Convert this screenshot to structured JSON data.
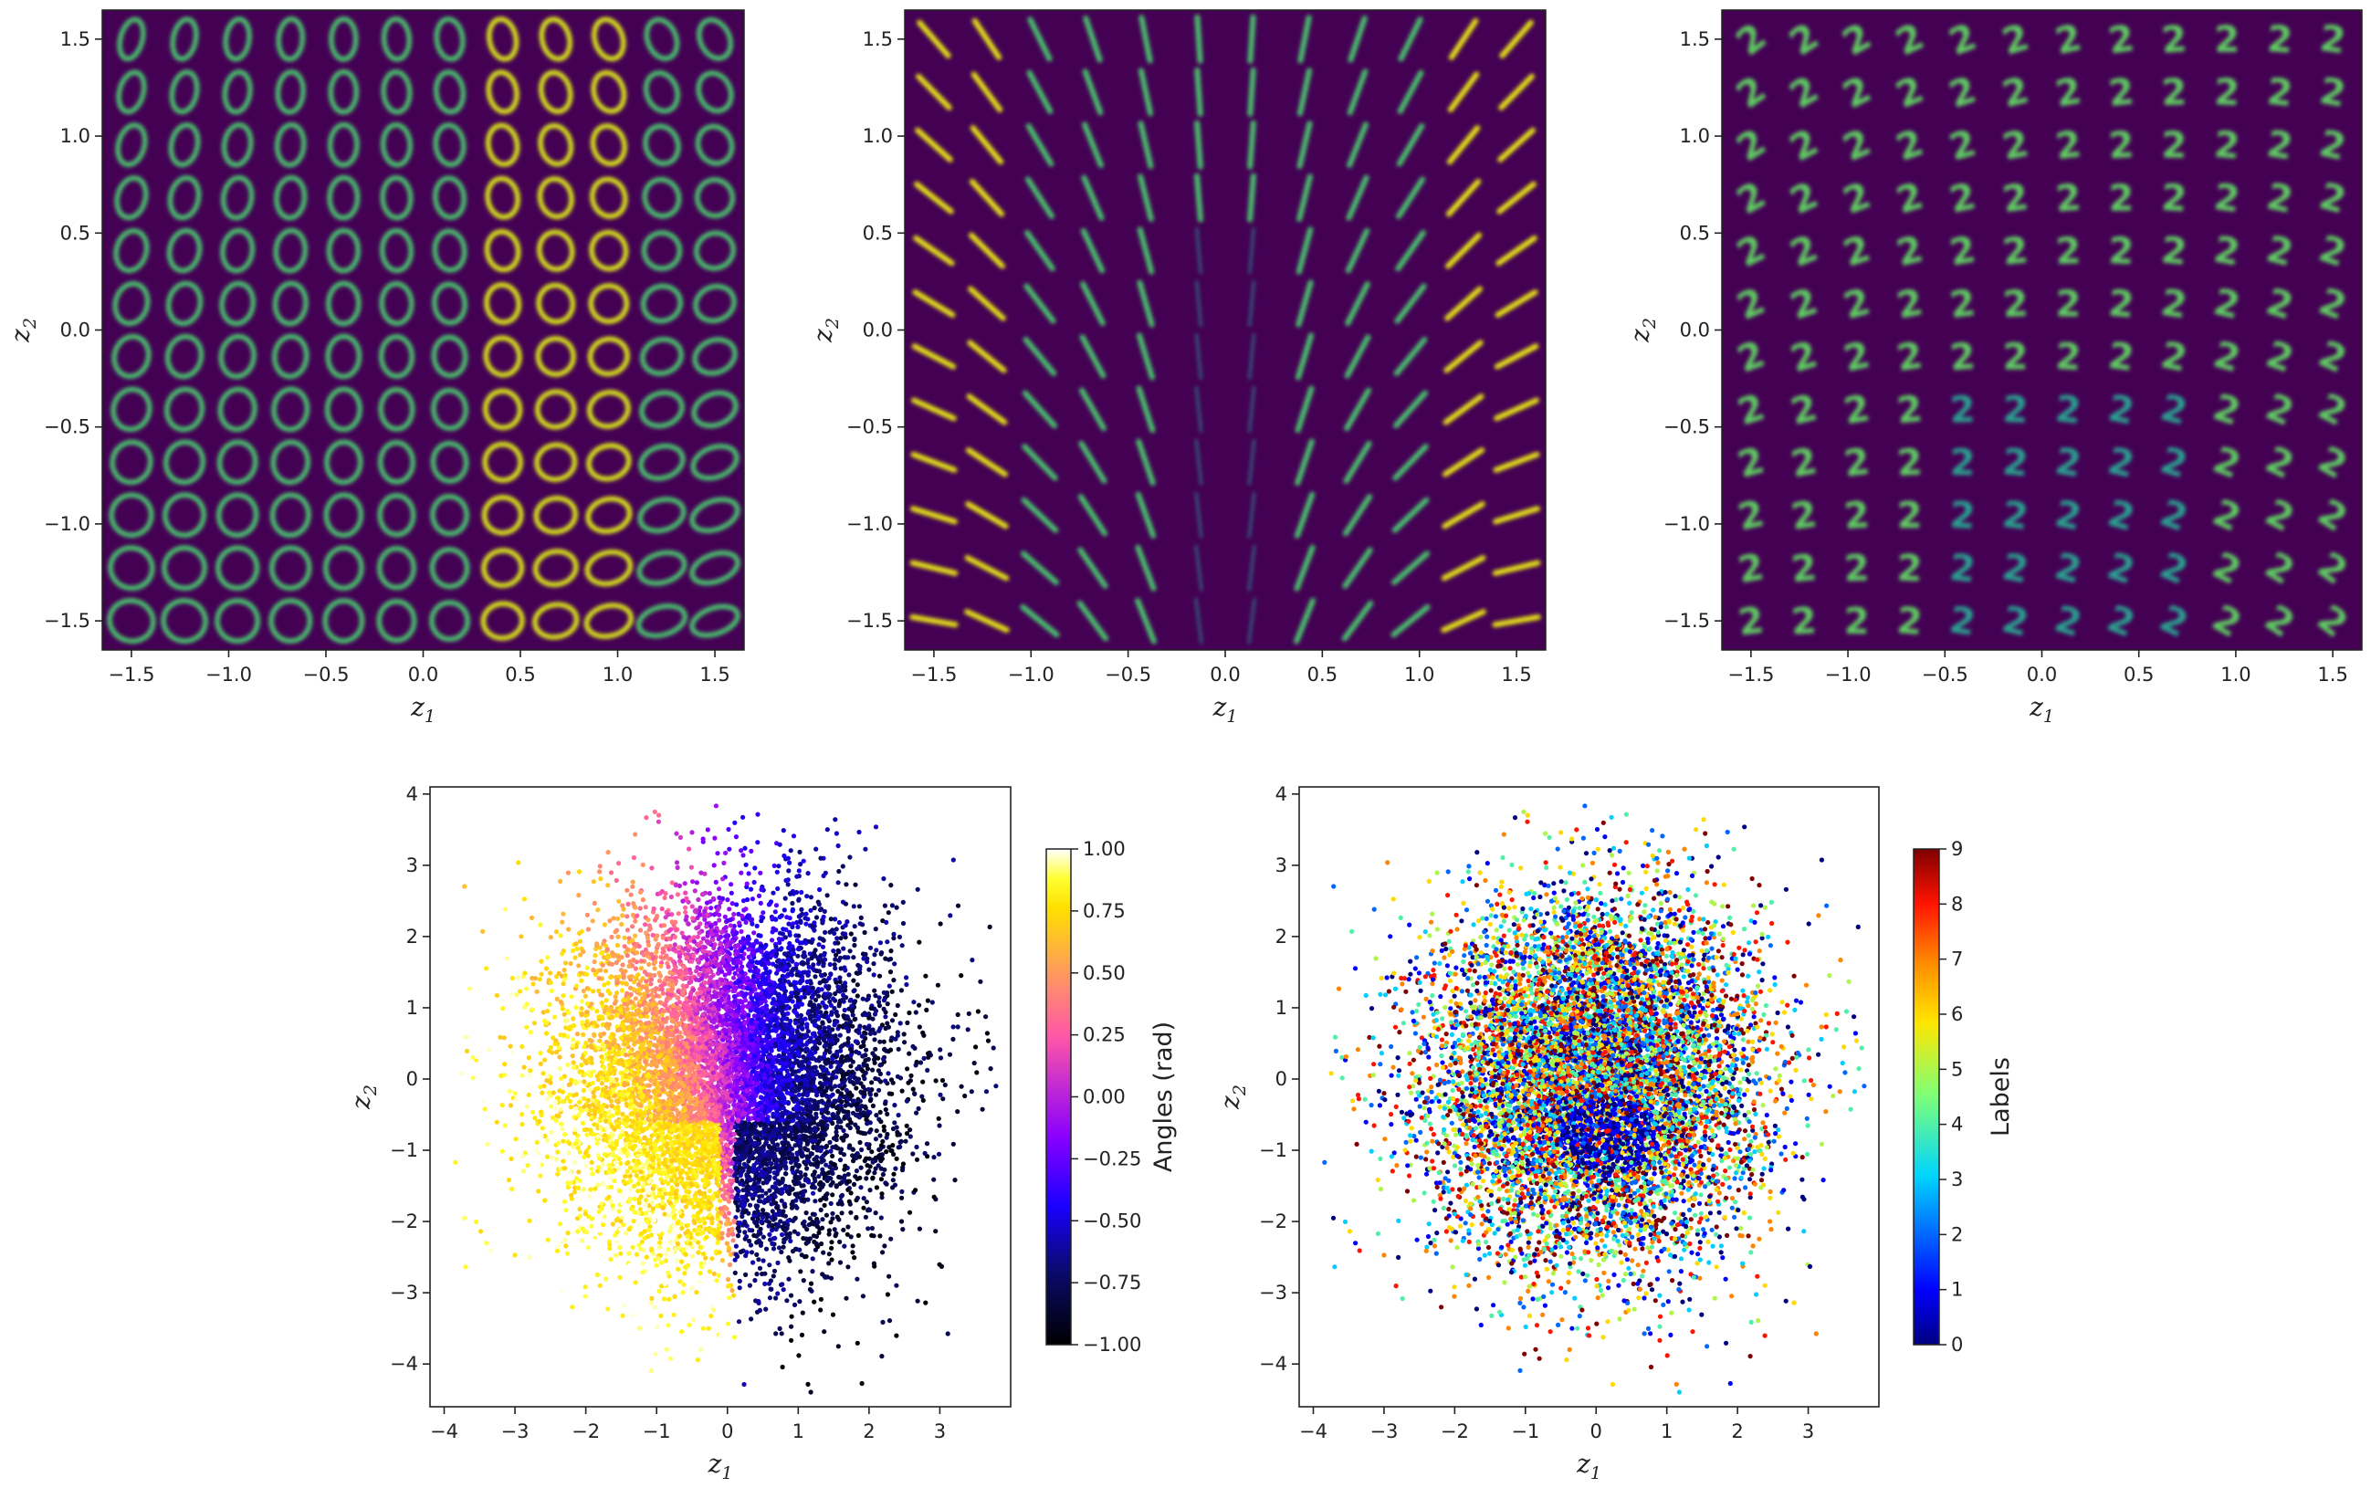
{
  "chart_data": [
    {
      "id": "latent-grid-ellipse",
      "type": "heatmap",
      "description": "12x12 grid of decoded images over latent space",
      "decoded_shape": "ellipse / digit 0",
      "grid_points_per_axis": 12,
      "grid_range": [
        -1.5,
        1.5
      ],
      "xlim": [
        -1.65,
        1.65
      ],
      "ylim": [
        -1.65,
        1.65
      ],
      "xticks": [
        -1.5,
        -1.0,
        -0.5,
        0.0,
        0.5,
        1.0,
        1.5
      ],
      "yticks": [
        -1.5,
        -1.0,
        -0.5,
        0.0,
        0.5,
        1.0,
        1.5
      ],
      "xtick_labels": [
        "−1.5",
        "−1.0",
        "−0.5",
        "0.0",
        "0.5",
        "1.0",
        "1.5"
      ],
      "ytick_labels": [
        "−1.5",
        "−1.0",
        "−0.5",
        "0.0",
        "0.5",
        "1.0",
        "1.5"
      ],
      "xlabel": "z",
      "xlabel_sub": "1",
      "ylabel": "z",
      "ylabel_sub": "2",
      "colormap": "viridis"
    },
    {
      "id": "latent-grid-line",
      "type": "heatmap",
      "description": "12x12 grid of decoded images over latent space",
      "decoded_shape": "line stroke / digit 1",
      "grid_points_per_axis": 12,
      "grid_range": [
        -1.5,
        1.5
      ],
      "xlim": [
        -1.65,
        1.65
      ],
      "ylim": [
        -1.65,
        1.65
      ],
      "xticks": [
        -1.5,
        -1.0,
        -0.5,
        0.0,
        0.5,
        1.0,
        1.5
      ],
      "yticks": [
        -1.5,
        -1.0,
        -0.5,
        0.0,
        0.5,
        1.0,
        1.5
      ],
      "xtick_labels": [
        "−1.5",
        "−1.0",
        "−0.5",
        "0.0",
        "0.5",
        "1.0",
        "1.5"
      ],
      "ytick_labels": [
        "−1.5",
        "−1.0",
        "−0.5",
        "0.0",
        "0.5",
        "1.0",
        "1.5"
      ],
      "xlabel": "z",
      "xlabel_sub": "1",
      "ylabel": "z",
      "ylabel_sub": "2",
      "colormap": "viridis"
    },
    {
      "id": "latent-grid-two",
      "type": "heatmap",
      "description": "12x12 grid of decoded images over latent space",
      "decoded_shape": "digit 2",
      "grid_points_per_axis": 12,
      "grid_range": [
        -1.5,
        1.5
      ],
      "xlim": [
        -1.65,
        1.65
      ],
      "ylim": [
        -1.65,
        1.65
      ],
      "xticks": [
        -1.5,
        -1.0,
        -0.5,
        0.0,
        0.5,
        1.0,
        1.5
      ],
      "yticks": [
        -1.5,
        -1.0,
        -0.5,
        0.0,
        0.5,
        1.0,
        1.5
      ],
      "xtick_labels": [
        "−1.5",
        "−1.0",
        "−0.5",
        "0.0",
        "0.5",
        "1.0",
        "1.5"
      ],
      "ytick_labels": [
        "−1.5",
        "−1.0",
        "−0.5",
        "0.0",
        "0.5",
        "1.0",
        "1.5"
      ],
      "xlabel": "z",
      "xlabel_sub": "1",
      "ylabel": "z",
      "ylabel_sub": "2",
      "colormap": "viridis"
    },
    {
      "id": "latent-scatter-angles",
      "type": "scatter",
      "description": "Latent embedding colored by rotation angle; approx. standard-normal cloud, yellow (positive angles) lower-left, black/blue (negative) lower-right, pink/purple top",
      "xlim": [
        -4.2,
        4.0
      ],
      "ylim": [
        -4.6,
        4.1
      ],
      "xticks": [
        -4,
        -3,
        -2,
        -1,
        0,
        1,
        2,
        3
      ],
      "yticks": [
        -4,
        -3,
        -2,
        -1,
        0,
        1,
        2,
        3,
        4
      ],
      "xtick_labels": [
        "−4",
        "−3",
        "−2",
        "−1",
        "0",
        "1",
        "2",
        "3"
      ],
      "ytick_labels": [
        "−4",
        "−3",
        "−2",
        "−1",
        "0",
        "1",
        "2",
        "3",
        "4"
      ],
      "xlabel": "z",
      "xlabel_sub": "1",
      "ylabel": "z",
      "ylabel_sub": "2",
      "point_count_estimate": 20000,
      "colormap": "gnuplot2",
      "colorbar": {
        "label": "Angles (rad)",
        "range": [
          -1.0,
          1.0
        ],
        "ticks": [
          -1.0,
          -0.75,
          -0.5,
          -0.25,
          0.0,
          0.25,
          0.5,
          0.75,
          1.0
        ],
        "tick_labels": [
          "−1.00",
          "−0.75",
          "−0.50",
          "−0.25",
          "0.00",
          "0.25",
          "0.50",
          "0.75",
          "1.00"
        ]
      }
    },
    {
      "id": "latent-scatter-labels",
      "type": "scatter",
      "description": "Same latent embedding colored by digit class label; classes thoroughly mixed, dark-blue cluster (label 0/1) near (0.2, -0.8)",
      "xlim": [
        -4.2,
        4.0
      ],
      "ylim": [
        -4.6,
        4.1
      ],
      "xticks": [
        -4,
        -3,
        -2,
        -1,
        0,
        1,
        2,
        3
      ],
      "yticks": [
        -4,
        -3,
        -2,
        -1,
        0,
        1,
        2,
        3,
        4
      ],
      "xtick_labels": [
        "−4",
        "−3",
        "−2",
        "−1",
        "0",
        "1",
        "2",
        "3"
      ],
      "ytick_labels": [
        "−4",
        "−3",
        "−2",
        "−1",
        "0",
        "1",
        "2",
        "3",
        "4"
      ],
      "xlabel": "z",
      "xlabel_sub": "1",
      "ylabel": "z",
      "ylabel_sub": "2",
      "point_count_estimate": 20000,
      "colormap": "jet",
      "colorbar": {
        "label": "Labels",
        "range": [
          0,
          9
        ],
        "ticks": [
          0,
          1,
          2,
          3,
          4,
          5,
          6,
          7,
          8,
          9
        ],
        "tick_labels": [
          "0",
          "1",
          "2",
          "3",
          "4",
          "5",
          "6",
          "7",
          "8",
          "9"
        ]
      }
    }
  ],
  "colors": {
    "grid_background": "#440154",
    "axis": "#222222"
  }
}
